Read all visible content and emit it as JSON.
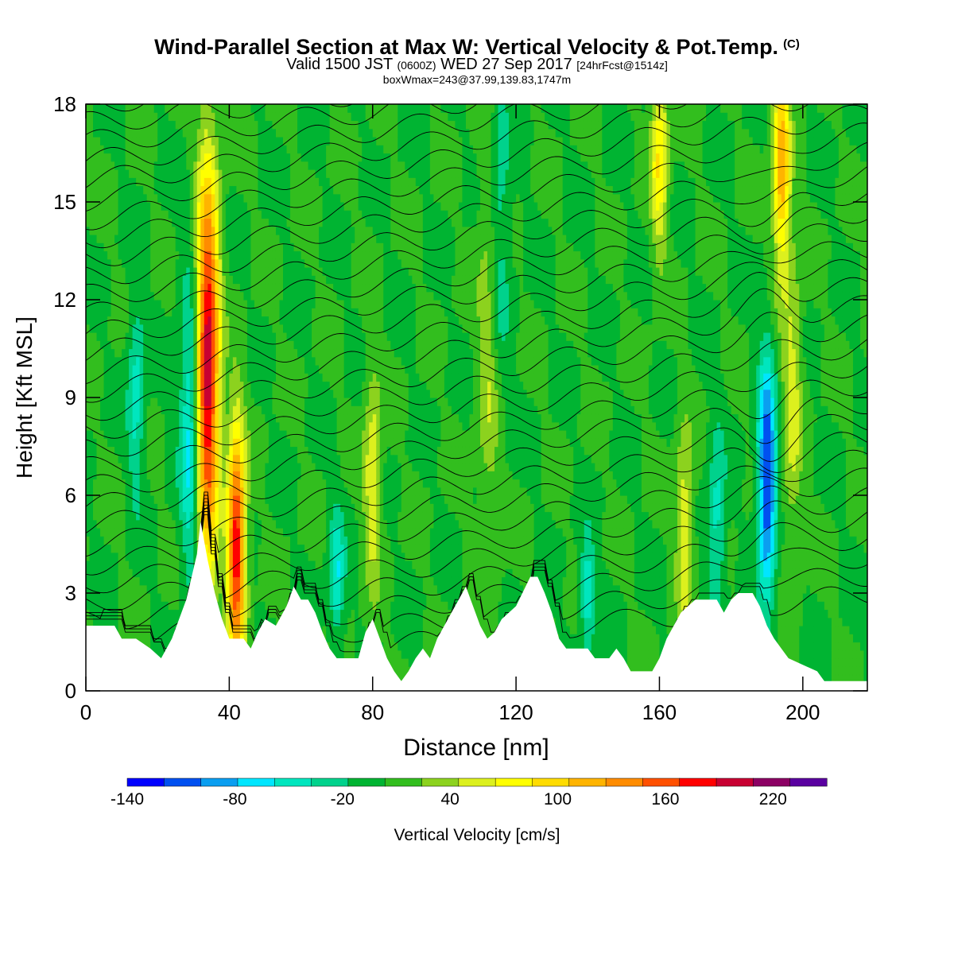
{
  "header": {
    "title": "Wind-Parallel Section at Max W: Vertical Velocity & Pot.Temp.",
    "copyright": "(C)",
    "valid_prefix": "Valid 1500 JST",
    "valid_utc": "(0600Z)",
    "valid_date": "WED 27 Sep 2017",
    "forecast": "[24hrFcst@1514z]",
    "box_info": "boxWmax=243@37.99,139.83,1747m"
  },
  "chart_data": {
    "type": "heatmap",
    "title": "Wind-Parallel Section at Max W: Vertical Velocity & Pot.Temp.",
    "xlabel": "Distance [nm]",
    "ylabel": "Height [Kft MSL]",
    "xlim": [
      0,
      218
    ],
    "ylim": [
      0,
      18
    ],
    "x_ticks": [
      0,
      40,
      80,
      120,
      160,
      200
    ],
    "y_ticks": [
      0,
      3,
      6,
      9,
      12,
      15,
      18
    ],
    "colorbar": {
      "label": "Vertical Velocity [cm/s]",
      "tick_labels": [
        "-140",
        "-80",
        "-20",
        "40",
        "100",
        "160",
        "220"
      ],
      "min": -140,
      "max": 250,
      "step": 20,
      "colors": [
        "#0000ff",
        "#0050f0",
        "#0a9ef0",
        "#00e6ff",
        "#00e6be",
        "#00d28c",
        "#00b432",
        "#32be1e",
        "#8cd21e",
        "#dcf01e",
        "#ffff00",
        "#ffdc00",
        "#ffb400",
        "#ff8c00",
        "#ff5000",
        "#ff0000",
        "#c80032",
        "#8c0064",
        "#5a00a0"
      ]
    },
    "background_level_cm_s": 0,
    "features": [
      {
        "x": 34,
        "z_low": 3.0,
        "z_high": 15.0,
        "peak_z": 10.0,
        "peak_w": 200
      },
      {
        "x": 42,
        "z_low": 1.8,
        "z_high": 9.0,
        "peak_z": 4.5,
        "peak_w": 180
      },
      {
        "x": 29,
        "z_low": 3.0,
        "z_high": 12.0,
        "peak_z": 8.0,
        "peak_w": -70
      },
      {
        "x": 14,
        "z_low": 4.0,
        "z_high": 10.0,
        "peak_z": 9.0,
        "peak_w": -50
      },
      {
        "x": 80,
        "z_low": 3.5,
        "z_high": 10.0,
        "peak_z": 6.5,
        "peak_w": 60
      },
      {
        "x": 70,
        "z_low": 2.0,
        "z_high": 6.0,
        "peak_z": 3.5,
        "peak_w": -60
      },
      {
        "x": 115,
        "z_low": 6.0,
        "z_high": 18.0,
        "peak_z": 14.0,
        "peak_w": -50
      },
      {
        "x": 113,
        "z_low": 2.0,
        "z_high": 16.0,
        "peak_z": 11.0,
        "peak_w": 50
      },
      {
        "x": 140,
        "z_low": 1.5,
        "z_high": 5.0,
        "peak_z": 3.0,
        "peak_w": -60
      },
      {
        "x": 160,
        "z_low": 12.0,
        "z_high": 18.0,
        "peak_z": 16.5,
        "peak_w": 80
      },
      {
        "x": 167,
        "z_low": 3.0,
        "z_high": 9.0,
        "peak_z": 5.0,
        "peak_w": 60
      },
      {
        "x": 176,
        "z_low": 2.0,
        "z_high": 8.0,
        "peak_z": 5.0,
        "peak_w": -50
      },
      {
        "x": 190,
        "z_low": 3.0,
        "z_high": 10.0,
        "peak_z": 6.5,
        "peak_w": -130
      },
      {
        "x": 194,
        "z_low": 12.0,
        "z_high": 18.0,
        "peak_z": 16.0,
        "peak_w": 120
      },
      {
        "x": 197,
        "z_low": 4.0,
        "z_high": 13.0,
        "peak_z": 9.0,
        "peak_w": 50
      }
    ],
    "terrain": [
      [
        0,
        2.0
      ],
      [
        8,
        2.0
      ],
      [
        10,
        1.6
      ],
      [
        14,
        1.6
      ],
      [
        18,
        1.3
      ],
      [
        21,
        1.0
      ],
      [
        24,
        1.6
      ],
      [
        28,
        2.8
      ],
      [
        31,
        4.2
      ],
      [
        32,
        5.2
      ],
      [
        34,
        4.0
      ],
      [
        36,
        3.0
      ],
      [
        38,
        2.2
      ],
      [
        40,
        1.6
      ],
      [
        44,
        1.6
      ],
      [
        46,
        1.3
      ],
      [
        48,
        1.8
      ],
      [
        50,
        2.2
      ],
      [
        53,
        2.0
      ],
      [
        56,
        2.6
      ],
      [
        58,
        3.2
      ],
      [
        60,
        2.8
      ],
      [
        62,
        2.8
      ],
      [
        64,
        2.4
      ],
      [
        66,
        1.8
      ],
      [
        68,
        1.3
      ],
      [
        70,
        1.0
      ],
      [
        76,
        1.0
      ],
      [
        78,
        1.8
      ],
      [
        80,
        2.2
      ],
      [
        82,
        1.6
      ],
      [
        84,
        1.0
      ],
      [
        86,
        0.6
      ],
      [
        88,
        0.3
      ],
      [
        90,
        0.6
      ],
      [
        92,
        1.0
      ],
      [
        94,
        1.3
      ],
      [
        96,
        1.0
      ],
      [
        98,
        1.6
      ],
      [
        100,
        2.0
      ],
      [
        102,
        2.4
      ],
      [
        104,
        2.8
      ],
      [
        106,
        3.2
      ],
      [
        108,
        2.6
      ],
      [
        110,
        2.0
      ],
      [
        112,
        1.6
      ],
      [
        114,
        1.8
      ],
      [
        116,
        2.2
      ],
      [
        120,
        2.6
      ],
      [
        124,
        3.5
      ],
      [
        126,
        3.5
      ],
      [
        128,
        3.0
      ],
      [
        130,
        2.4
      ],
      [
        132,
        1.6
      ],
      [
        134,
        1.3
      ],
      [
        140,
        1.3
      ],
      [
        142,
        1.0
      ],
      [
        146,
        1.0
      ],
      [
        148,
        1.3
      ],
      [
        150,
        1.0
      ],
      [
        152,
        0.6
      ],
      [
        158,
        0.6
      ],
      [
        160,
        1.0
      ],
      [
        162,
        1.6
      ],
      [
        164,
        2.0
      ],
      [
        166,
        2.4
      ],
      [
        168,
        2.6
      ],
      [
        170,
        2.8
      ],
      [
        176,
        2.8
      ],
      [
        178,
        2.4
      ],
      [
        180,
        2.8
      ],
      [
        182,
        3.0
      ],
      [
        186,
        3.0
      ],
      [
        188,
        2.6
      ],
      [
        190,
        2.0
      ],
      [
        192,
        1.6
      ],
      [
        194,
        1.3
      ],
      [
        196,
        1.0
      ],
      [
        200,
        0.8
      ],
      [
        204,
        0.6
      ],
      [
        206,
        0.3
      ],
      [
        218,
        0.3
      ]
    ],
    "isentrope_count": 34
  }
}
